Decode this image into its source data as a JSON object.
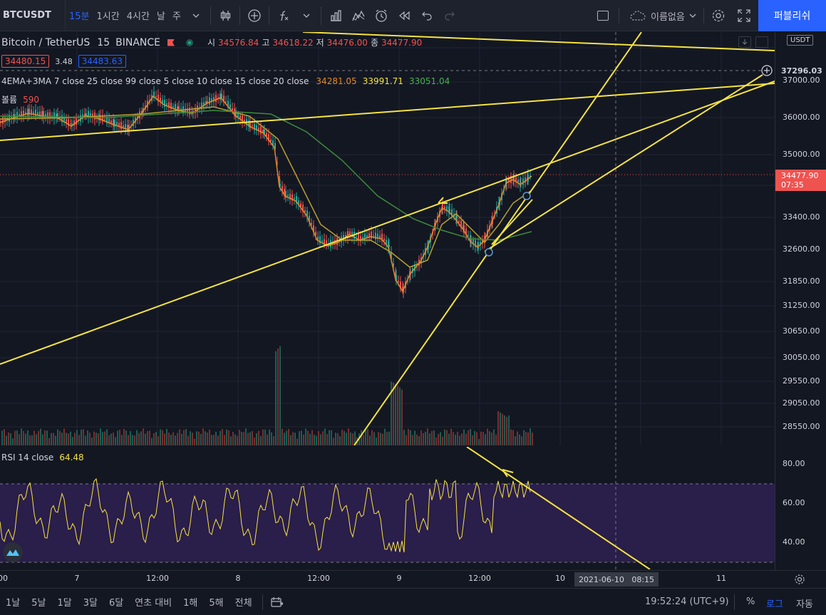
{
  "toolbar": {
    "symbol": "BTCUSDT",
    "intervals": [
      "15분",
      "1시간",
      "4시간",
      "날",
      "주"
    ],
    "layout_name": "이름없음",
    "publish_label": "퍼블리쉬"
  },
  "legend": {
    "title": "Bitcoin / TetherUS",
    "interval": "15",
    "exchange": "BINANCE",
    "open_label": "시",
    "open": "34576.84",
    "high_label": "고",
    "high": "34618.22",
    "low_label": "저",
    "low": "34476.00",
    "close_label": "종",
    "close": "34477.90",
    "bid": "34480.15",
    "spread": "3.48",
    "ask": "34483.63",
    "indicator_name": "4EMA+3MA 7 close 25 close 99 close 5 close 10 close 15 close 20 close",
    "ind_v1": "34281.05",
    "ind_v2": "33991.71",
    "ind_v3": "33051.04",
    "volume_label": "볼륨",
    "volume_value": "590",
    "currency": "USDT"
  },
  "rsi": {
    "label": "RSI 14 close",
    "value": "64.48",
    "levels": [
      "80.00",
      "60.00",
      "40.00"
    ]
  },
  "price_axis": {
    "ticks": [
      "37000.00",
      "36000.00",
      "35000.00",
      "33400.00",
      "32600.00",
      "31850.00",
      "31250.00",
      "30650.00",
      "30050.00",
      "29550.00",
      "29050.00",
      "28550.00"
    ],
    "crosshair_price": "37296.03",
    "last_price": "34477.90",
    "countdown": "07:35"
  },
  "time_axis": {
    "ticks": [
      "00",
      "7",
      "12:00",
      "8",
      "12:00",
      "9",
      "12:00",
      "10",
      "11"
    ],
    "crosshair_time": "2021-06-10   08:15"
  },
  "bottom_bar": {
    "ranges": [
      "1날",
      "5날",
      "1달",
      "3달",
      "6달",
      "연초 대비",
      "1해",
      "5해",
      "전체"
    ],
    "clock": "19:52:24 (UTC+9)",
    "percent": "%",
    "log": "로그",
    "auto": "자동"
  },
  "colors": {
    "bg": "#131722",
    "up": "#26a69a",
    "down": "#ef5350",
    "trendline": "#f5e342",
    "ema_orange": "#e08a2a",
    "ma_green": "#3d8b3d",
    "rsi_band": "#2a1e4a"
  }
}
